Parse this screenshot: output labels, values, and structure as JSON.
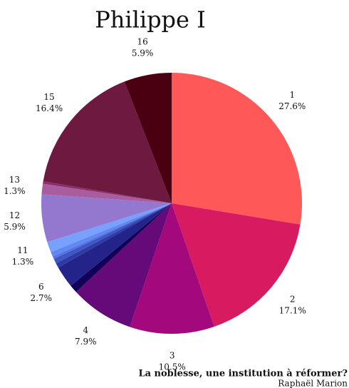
{
  "chart_data": {
    "type": "pie",
    "title": "Philippe I",
    "categories": [
      "1",
      "2",
      "3",
      "4",
      null,
      "6",
      null,
      null,
      null,
      null,
      "11",
      "12",
      "13",
      null,
      "15",
      "16"
    ],
    "values": [
      27.6,
      17.1,
      10.5,
      7.9,
      1.0,
      2.7,
      0.6,
      0.6,
      0.3,
      0.6,
      1.3,
      5.9,
      1.3,
      0.3,
      16.4,
      5.9
    ],
    "value_labels": [
      "27.6%",
      "17.1%",
      "10.5%",
      "7.9%",
      null,
      "2.7%",
      null,
      null,
      null,
      null,
      "1.3%",
      "5.9%",
      "1.3%",
      null,
      "16.4%",
      "5.9%"
    ],
    "colors": [
      "#ff5858",
      "#d81b60",
      "#a3087c",
      "#650a78",
      "#120058",
      "#23238a",
      "#2e3aa6",
      "#3f57c4",
      "#5275e0",
      "#6286f2",
      "#78a0ff",
      "#9478d0",
      "#a95c9e",
      "#8a2d6c",
      "#6e1a40",
      "#4a0010"
    ],
    "subtitle": "La noblesse, une institution à réformer?",
    "author": "Raphaël Marion"
  }
}
